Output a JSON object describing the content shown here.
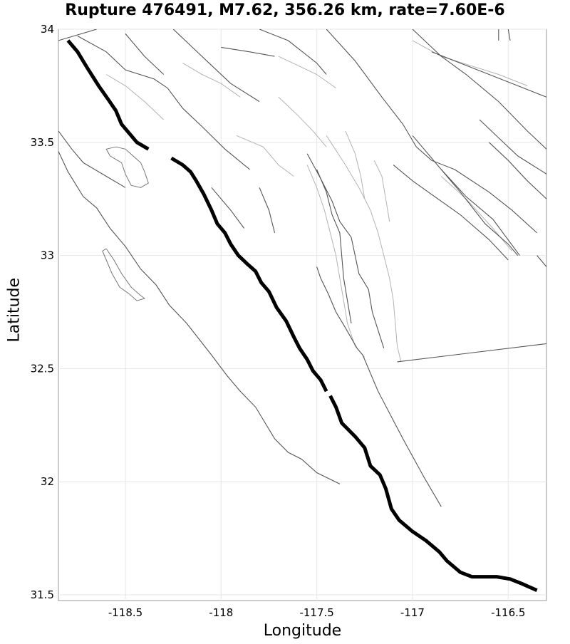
{
  "title": "Rupture 476491, M7.62, 356.26 km, rate=7.60E-6",
  "chart_data": {
    "type": "line",
    "title": "Rupture 476491, M7.62, 356.26 km, rate=7.60E-6",
    "xlabel": "Longitude",
    "ylabel": "Latitude",
    "xlim": [
      -118.85,
      -116.3
    ],
    "ylim": [
      31.475,
      34.0
    ],
    "x_ticks": [
      -118.5,
      -118,
      -117.5,
      -117,
      -116.5
    ],
    "x_tick_labels": [
      "-118.5",
      "-118",
      "-117.5",
      "-117",
      "-116.5"
    ],
    "y_ticks": [
      31.5,
      32,
      32.5,
      33,
      33.5,
      34
    ],
    "y_tick_labels": [
      "31.5",
      "32",
      "32.5",
      "33",
      "33.5",
      "34"
    ],
    "grid": true,
    "rupture": {
      "name": "Rupture 476491",
      "magnitude": 7.62,
      "length_km": 356.26,
      "rate": "7.60E-6",
      "color": "#000000",
      "segments": [
        [
          [
            -118.8,
            33.95
          ],
          [
            -118.75,
            33.9
          ],
          [
            -118.7,
            33.83
          ],
          [
            -118.64,
            33.75
          ],
          [
            -118.59,
            33.69
          ],
          [
            -118.55,
            33.64
          ],
          [
            -118.52,
            33.58
          ],
          [
            -118.48,
            33.54
          ],
          [
            -118.44,
            33.5
          ],
          [
            -118.38,
            33.47
          ]
        ],
        [
          [
            -118.26,
            33.43
          ],
          [
            -118.2,
            33.4
          ],
          [
            -118.16,
            33.37
          ],
          [
            -118.13,
            33.33
          ],
          [
            -118.09,
            33.27
          ],
          [
            -118.05,
            33.2
          ],
          [
            -118.02,
            33.14
          ],
          [
            -117.98,
            33.1
          ],
          [
            -117.95,
            33.05
          ],
          [
            -117.91,
            33.0
          ],
          [
            -117.86,
            32.96
          ],
          [
            -117.82,
            32.93
          ],
          [
            -117.79,
            32.88
          ],
          [
            -117.75,
            32.84
          ],
          [
            -117.71,
            32.77
          ],
          [
            -117.66,
            32.71
          ],
          [
            -117.62,
            32.64
          ],
          [
            -117.59,
            32.59
          ],
          [
            -117.55,
            32.54
          ],
          [
            -117.52,
            32.49
          ],
          [
            -117.48,
            32.45
          ],
          [
            -117.45,
            32.4
          ]
        ],
        [
          [
            -117.43,
            32.38
          ],
          [
            -117.4,
            32.33
          ],
          [
            -117.37,
            32.26
          ],
          [
            -117.3,
            32.2
          ],
          [
            -117.25,
            32.15
          ],
          [
            -117.22,
            32.07
          ],
          [
            -117.17,
            32.03
          ],
          [
            -117.14,
            31.97
          ],
          [
            -117.11,
            31.88
          ],
          [
            -117.07,
            31.83
          ],
          [
            -117.0,
            31.78
          ],
          [
            -116.93,
            31.74
          ],
          [
            -116.86,
            31.69
          ],
          [
            -116.82,
            31.65
          ],
          [
            -116.75,
            31.6
          ],
          [
            -116.69,
            31.58
          ],
          [
            -116.56,
            31.58
          ],
          [
            -116.49,
            31.57
          ],
          [
            -116.43,
            31.55
          ],
          [
            -116.35,
            31.52
          ]
        ]
      ]
    },
    "background_faults": [
      [
        [
          -118.85,
          33.46
        ],
        [
          -118.8,
          33.37
        ],
        [
          -118.72,
          33.26
        ],
        [
          -118.65,
          33.21
        ],
        [
          -118.58,
          33.12
        ],
        [
          -118.5,
          33.04
        ],
        [
          -118.42,
          32.94
        ],
        [
          -118.34,
          32.87
        ],
        [
          -118.27,
          32.78
        ],
        [
          -118.18,
          32.7
        ],
        [
          -118.05,
          32.56
        ],
        [
          -117.97,
          32.47
        ],
        [
          -117.9,
          32.4
        ],
        [
          -117.82,
          32.33
        ],
        [
          -117.72,
          32.19
        ],
        [
          -117.65,
          32.13
        ],
        [
          -117.58,
          32.1
        ],
        [
          -117.5,
          32.04
        ],
        [
          -117.38,
          31.99
        ]
      ],
      [
        [
          -118.85,
          33.55
        ],
        [
          -118.78,
          33.47
        ],
        [
          -118.72,
          33.41
        ],
        [
          -118.6,
          33.35
        ],
        [
          -118.5,
          33.3
        ]
      ],
      [
        [
          -117.5,
          32.95
        ],
        [
          -117.48,
          32.9
        ],
        [
          -117.44,
          32.83
        ],
        [
          -117.4,
          32.75
        ],
        [
          -117.35,
          32.68
        ],
        [
          -117.29,
          32.59
        ],
        [
          -117.26,
          32.56
        ],
        [
          -117.18,
          32.4
        ],
        [
          -117.05,
          32.19
        ],
        [
          -116.94,
          32.02
        ],
        [
          -116.85,
          31.89
        ]
      ],
      [
        [
          -117.08,
          32.53
        ],
        [
          -116.3,
          32.61
        ]
      ],
      [
        [
          -118.75,
          33.97
        ],
        [
          -118.6,
          33.9
        ],
        [
          -118.5,
          33.82
        ],
        [
          -118.35,
          33.78
        ],
        [
          -118.28,
          33.74
        ],
        [
          -118.2,
          33.65
        ],
        [
          -118.1,
          33.57
        ],
        [
          -117.98,
          33.47
        ],
        [
          -117.85,
          33.38
        ]
      ],
      [
        [
          -118.25,
          34.0
        ],
        [
          -118.15,
          33.92
        ],
        [
          -118.05,
          33.84
        ],
        [
          -117.95,
          33.76
        ],
        [
          -117.8,
          33.68
        ]
      ],
      [
        [
          -118.5,
          33.98
        ],
        [
          -118.4,
          33.88
        ],
        [
          -118.3,
          33.8
        ]
      ],
      [
        [
          -117.8,
          34.0
        ],
        [
          -117.65,
          33.95
        ],
        [
          -117.5,
          33.85
        ],
        [
          -117.45,
          33.8
        ]
      ],
      [
        [
          -117.45,
          34.0
        ],
        [
          -117.3,
          33.86
        ],
        [
          -117.16,
          33.7
        ],
        [
          -117.05,
          33.58
        ],
        [
          -116.98,
          33.48
        ],
        [
          -116.9,
          33.42
        ],
        [
          -116.78,
          33.38
        ],
        [
          -116.6,
          33.28
        ],
        [
          -116.48,
          33.2
        ],
        [
          -116.35,
          33.1
        ]
      ],
      [
        [
          -117.0,
          34.0
        ],
        [
          -116.85,
          33.88
        ],
        [
          -116.72,
          33.8
        ],
        [
          -116.55,
          33.68
        ],
        [
          -116.4,
          33.55
        ],
        [
          -116.3,
          33.47
        ]
      ],
      [
        [
          -117.0,
          33.53
        ],
        [
          -116.88,
          33.41
        ],
        [
          -116.75,
          33.28
        ],
        [
          -116.62,
          33.14
        ],
        [
          -116.5,
          33.05
        ],
        [
          -116.45,
          33.0
        ]
      ],
      [
        [
          -116.85,
          33.38
        ],
        [
          -116.72,
          33.26
        ],
        [
          -116.58,
          33.16
        ],
        [
          -116.44,
          33.0
        ]
      ],
      [
        [
          -116.6,
          33.5
        ],
        [
          -116.5,
          33.42
        ],
        [
          -116.4,
          33.33
        ],
        [
          -116.3,
          33.25
        ]
      ],
      [
        [
          -116.65,
          33.6
        ],
        [
          -116.55,
          33.52
        ],
        [
          -116.45,
          33.44
        ],
        [
          -116.3,
          33.36
        ]
      ],
      [
        [
          -117.55,
          33.45
        ],
        [
          -117.48,
          33.34
        ],
        [
          -117.42,
          33.24
        ],
        [
          -117.38,
          33.15
        ],
        [
          -117.32,
          33.08
        ],
        [
          -117.3,
          33.0
        ],
        [
          -117.28,
          32.92
        ],
        [
          -117.23,
          32.85
        ],
        [
          -117.21,
          32.75
        ],
        [
          -117.18,
          32.67
        ],
        [
          -117.15,
          32.59
        ]
      ],
      [
        [
          -117.5,
          33.38
        ],
        [
          -117.45,
          33.28
        ],
        [
          -117.42,
          33.18
        ],
        [
          -117.38,
          33.1
        ],
        [
          -117.37,
          33.0
        ],
        [
          -117.36,
          32.9
        ],
        [
          -117.34,
          32.8
        ],
        [
          -117.32,
          32.7
        ]
      ],
      [
        [
          -117.8,
          33.3
        ],
        [
          -117.75,
          33.2
        ],
        [
          -117.72,
          33.1
        ]
      ],
      [
        [
          -118.05,
          33.3
        ],
        [
          -117.95,
          33.2
        ],
        [
          -117.88,
          33.12
        ]
      ],
      [
        [
          -117.1,
          33.4
        ],
        [
          -117.0,
          33.33
        ],
        [
          -116.9,
          33.27
        ],
        [
          -116.75,
          33.18
        ],
        [
          -116.6,
          33.07
        ],
        [
          -116.5,
          32.98
        ]
      ],
      [
        [
          -116.35,
          33.0
        ],
        [
          -116.3,
          32.95
        ]
      ],
      [
        [
          -118.85,
          33.95
        ],
        [
          -118.65,
          34.0
        ]
      ],
      [
        [
          -118.0,
          33.92
        ],
        [
          -117.85,
          33.9
        ],
        [
          -117.72,
          33.88
        ]
      ],
      [
        [
          -116.9,
          33.9
        ],
        [
          -116.75,
          33.85
        ],
        [
          -116.6,
          33.8
        ],
        [
          -116.45,
          33.75
        ],
        [
          -116.3,
          33.7
        ]
      ],
      [
        [
          -116.55,
          34.0
        ],
        [
          -116.55,
          33.95
        ]
      ],
      [
        [
          -116.5,
          34.0
        ],
        [
          -116.49,
          33.95
        ]
      ]
    ],
    "subsection_traces": [
      [
        [
          -117.45,
          33.53
        ],
        [
          -117.35,
          33.4
        ],
        [
          -117.28,
          33.3
        ],
        [
          -117.22,
          33.2
        ],
        [
          -117.18,
          33.1
        ],
        [
          -117.15,
          33.0
        ],
        [
          -117.12,
          32.9
        ],
        [
          -117.1,
          32.8
        ],
        [
          -117.09,
          32.7
        ],
        [
          -117.08,
          32.6
        ],
        [
          -117.06,
          32.53
        ]
      ],
      [
        [
          -117.55,
          33.4
        ],
        [
          -117.5,
          33.3
        ],
        [
          -117.46,
          33.2
        ],
        [
          -117.43,
          33.1
        ],
        [
          -117.4,
          33.0
        ],
        [
          -117.38,
          32.9
        ],
        [
          -117.36,
          32.8
        ],
        [
          -117.34,
          32.7
        ],
        [
          -117.3,
          32.6
        ],
        [
          -117.25,
          32.55
        ]
      ],
      [
        [
          -117.7,
          33.7
        ],
        [
          -117.6,
          33.62
        ],
        [
          -117.52,
          33.55
        ],
        [
          -117.45,
          33.48
        ]
      ],
      [
        [
          -117.92,
          33.53
        ],
        [
          -117.78,
          33.48
        ],
        [
          -117.7,
          33.4
        ],
        [
          -117.62,
          33.35
        ]
      ],
      [
        [
          -116.85,
          33.35
        ],
        [
          -116.72,
          33.25
        ],
        [
          -116.58,
          33.12
        ],
        [
          -116.48,
          33.02
        ]
      ],
      [
        [
          -118.6,
          33.8
        ],
        [
          -118.5,
          33.75
        ],
        [
          -118.4,
          33.68
        ],
        [
          -118.3,
          33.6
        ]
      ],
      [
        [
          -117.35,
          33.55
        ],
        [
          -117.3,
          33.45
        ],
        [
          -117.27,
          33.35
        ],
        [
          -117.25,
          33.25
        ]
      ],
      [
        [
          -117.2,
          33.42
        ],
        [
          -117.16,
          33.35
        ],
        [
          -117.14,
          33.25
        ],
        [
          -117.12,
          33.15
        ]
      ],
      [
        [
          -117.0,
          33.95
        ],
        [
          -116.85,
          33.88
        ],
        [
          -116.7,
          33.84
        ],
        [
          -116.55,
          33.8
        ],
        [
          -116.4,
          33.75
        ]
      ],
      [
        [
          -117.7,
          33.88
        ],
        [
          -117.6,
          33.84
        ],
        [
          -117.5,
          33.8
        ],
        [
          -117.4,
          33.74
        ]
      ],
      [
        [
          -118.2,
          33.85
        ],
        [
          -118.1,
          33.8
        ],
        [
          -118.0,
          33.76
        ],
        [
          -117.9,
          33.7
        ]
      ]
    ],
    "islands": [
      [
        [
          -118.55,
          33.48
        ],
        [
          -118.5,
          33.47
        ],
        [
          -118.46,
          33.44
        ],
        [
          -118.42,
          33.41
        ],
        [
          -118.4,
          33.37
        ],
        [
          -118.38,
          33.32
        ],
        [
          -118.42,
          33.3
        ],
        [
          -118.47,
          33.31
        ],
        [
          -118.5,
          33.36
        ],
        [
          -118.52,
          33.41
        ],
        [
          -118.58,
          33.44
        ],
        [
          -118.6,
          33.47
        ],
        [
          -118.55,
          33.48
        ]
      ],
      [
        [
          -118.6,
          33.03
        ],
        [
          -118.56,
          32.98
        ],
        [
          -118.52,
          32.92
        ],
        [
          -118.47,
          32.86
        ],
        [
          -118.43,
          32.83
        ],
        [
          -118.4,
          32.81
        ],
        [
          -118.44,
          32.8
        ],
        [
          -118.48,
          32.83
        ],
        [
          -118.53,
          32.86
        ],
        [
          -118.57,
          32.92
        ],
        [
          -118.6,
          32.98
        ],
        [
          -118.62,
          33.02
        ],
        [
          -118.6,
          33.03
        ]
      ]
    ]
  }
}
